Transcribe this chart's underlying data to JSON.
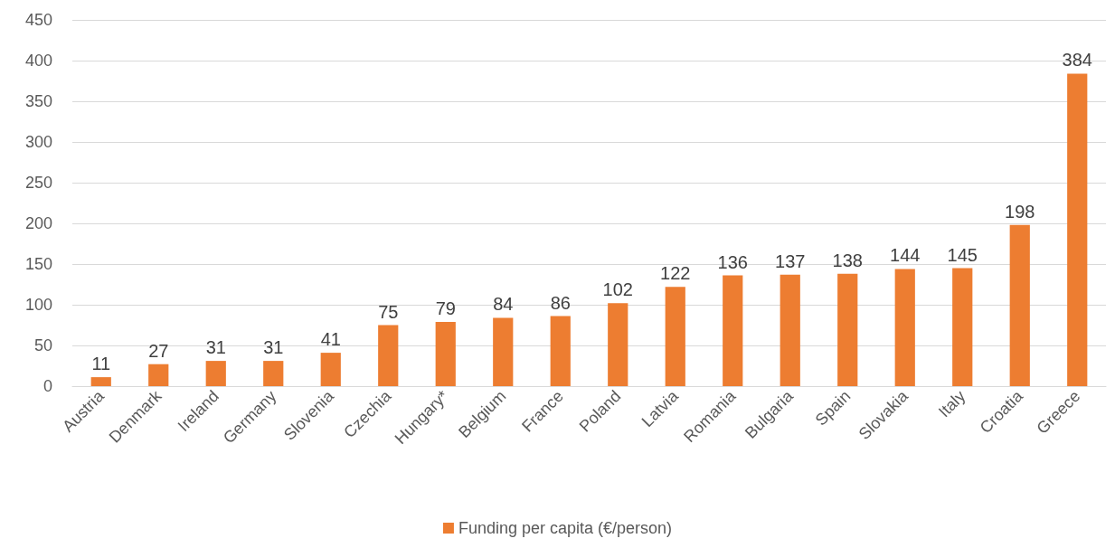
{
  "chart_data": {
    "type": "bar",
    "categories": [
      "Austria",
      "Denmark",
      "Ireland",
      "Germany",
      "Slovenia",
      "Czechia",
      "Hungary*",
      "Belgium",
      "France",
      "Poland",
      "Latvia",
      "Romania",
      "Bulgaria",
      "Spain",
      "Slovakia",
      "Italy",
      "Croatia",
      "Greece"
    ],
    "series": [
      {
        "name": "Funding per capita (€/person)",
        "color": "#ed7d31",
        "values": [
          11,
          27,
          31,
          31,
          41,
          75,
          79,
          84,
          86,
          102,
          122,
          136,
          137,
          138,
          144,
          145,
          198,
          384
        ]
      }
    ],
    "ylim": [
      0,
      450
    ],
    "yticks": [
      0,
      50,
      100,
      150,
      200,
      250,
      300,
      350,
      400,
      450
    ],
    "grid": "y",
    "legend": "bottom",
    "data_labels": true
  }
}
